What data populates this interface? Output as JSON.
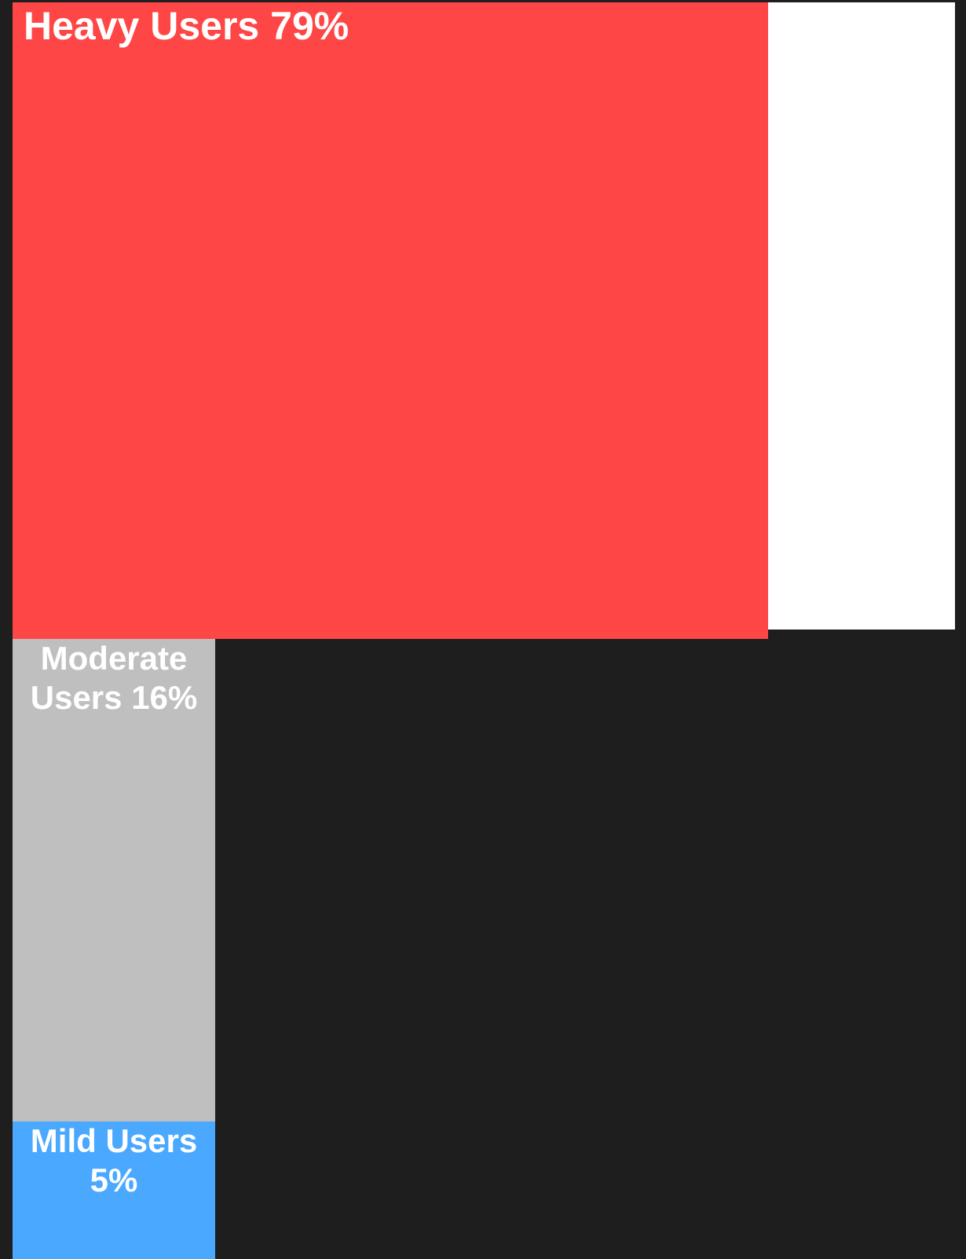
{
  "chart_data": {
    "type": "treemap",
    "categories": [
      "Heavy Users",
      "Moderate Users",
      "Mild Users"
    ],
    "values": [
      79,
      16,
      5
    ],
    "value_labels": [
      "79%",
      "16%",
      "5%"
    ],
    "colors": [
      "#ff4646",
      "#bfbfbf",
      "#4aa8ff"
    ]
  }
}
